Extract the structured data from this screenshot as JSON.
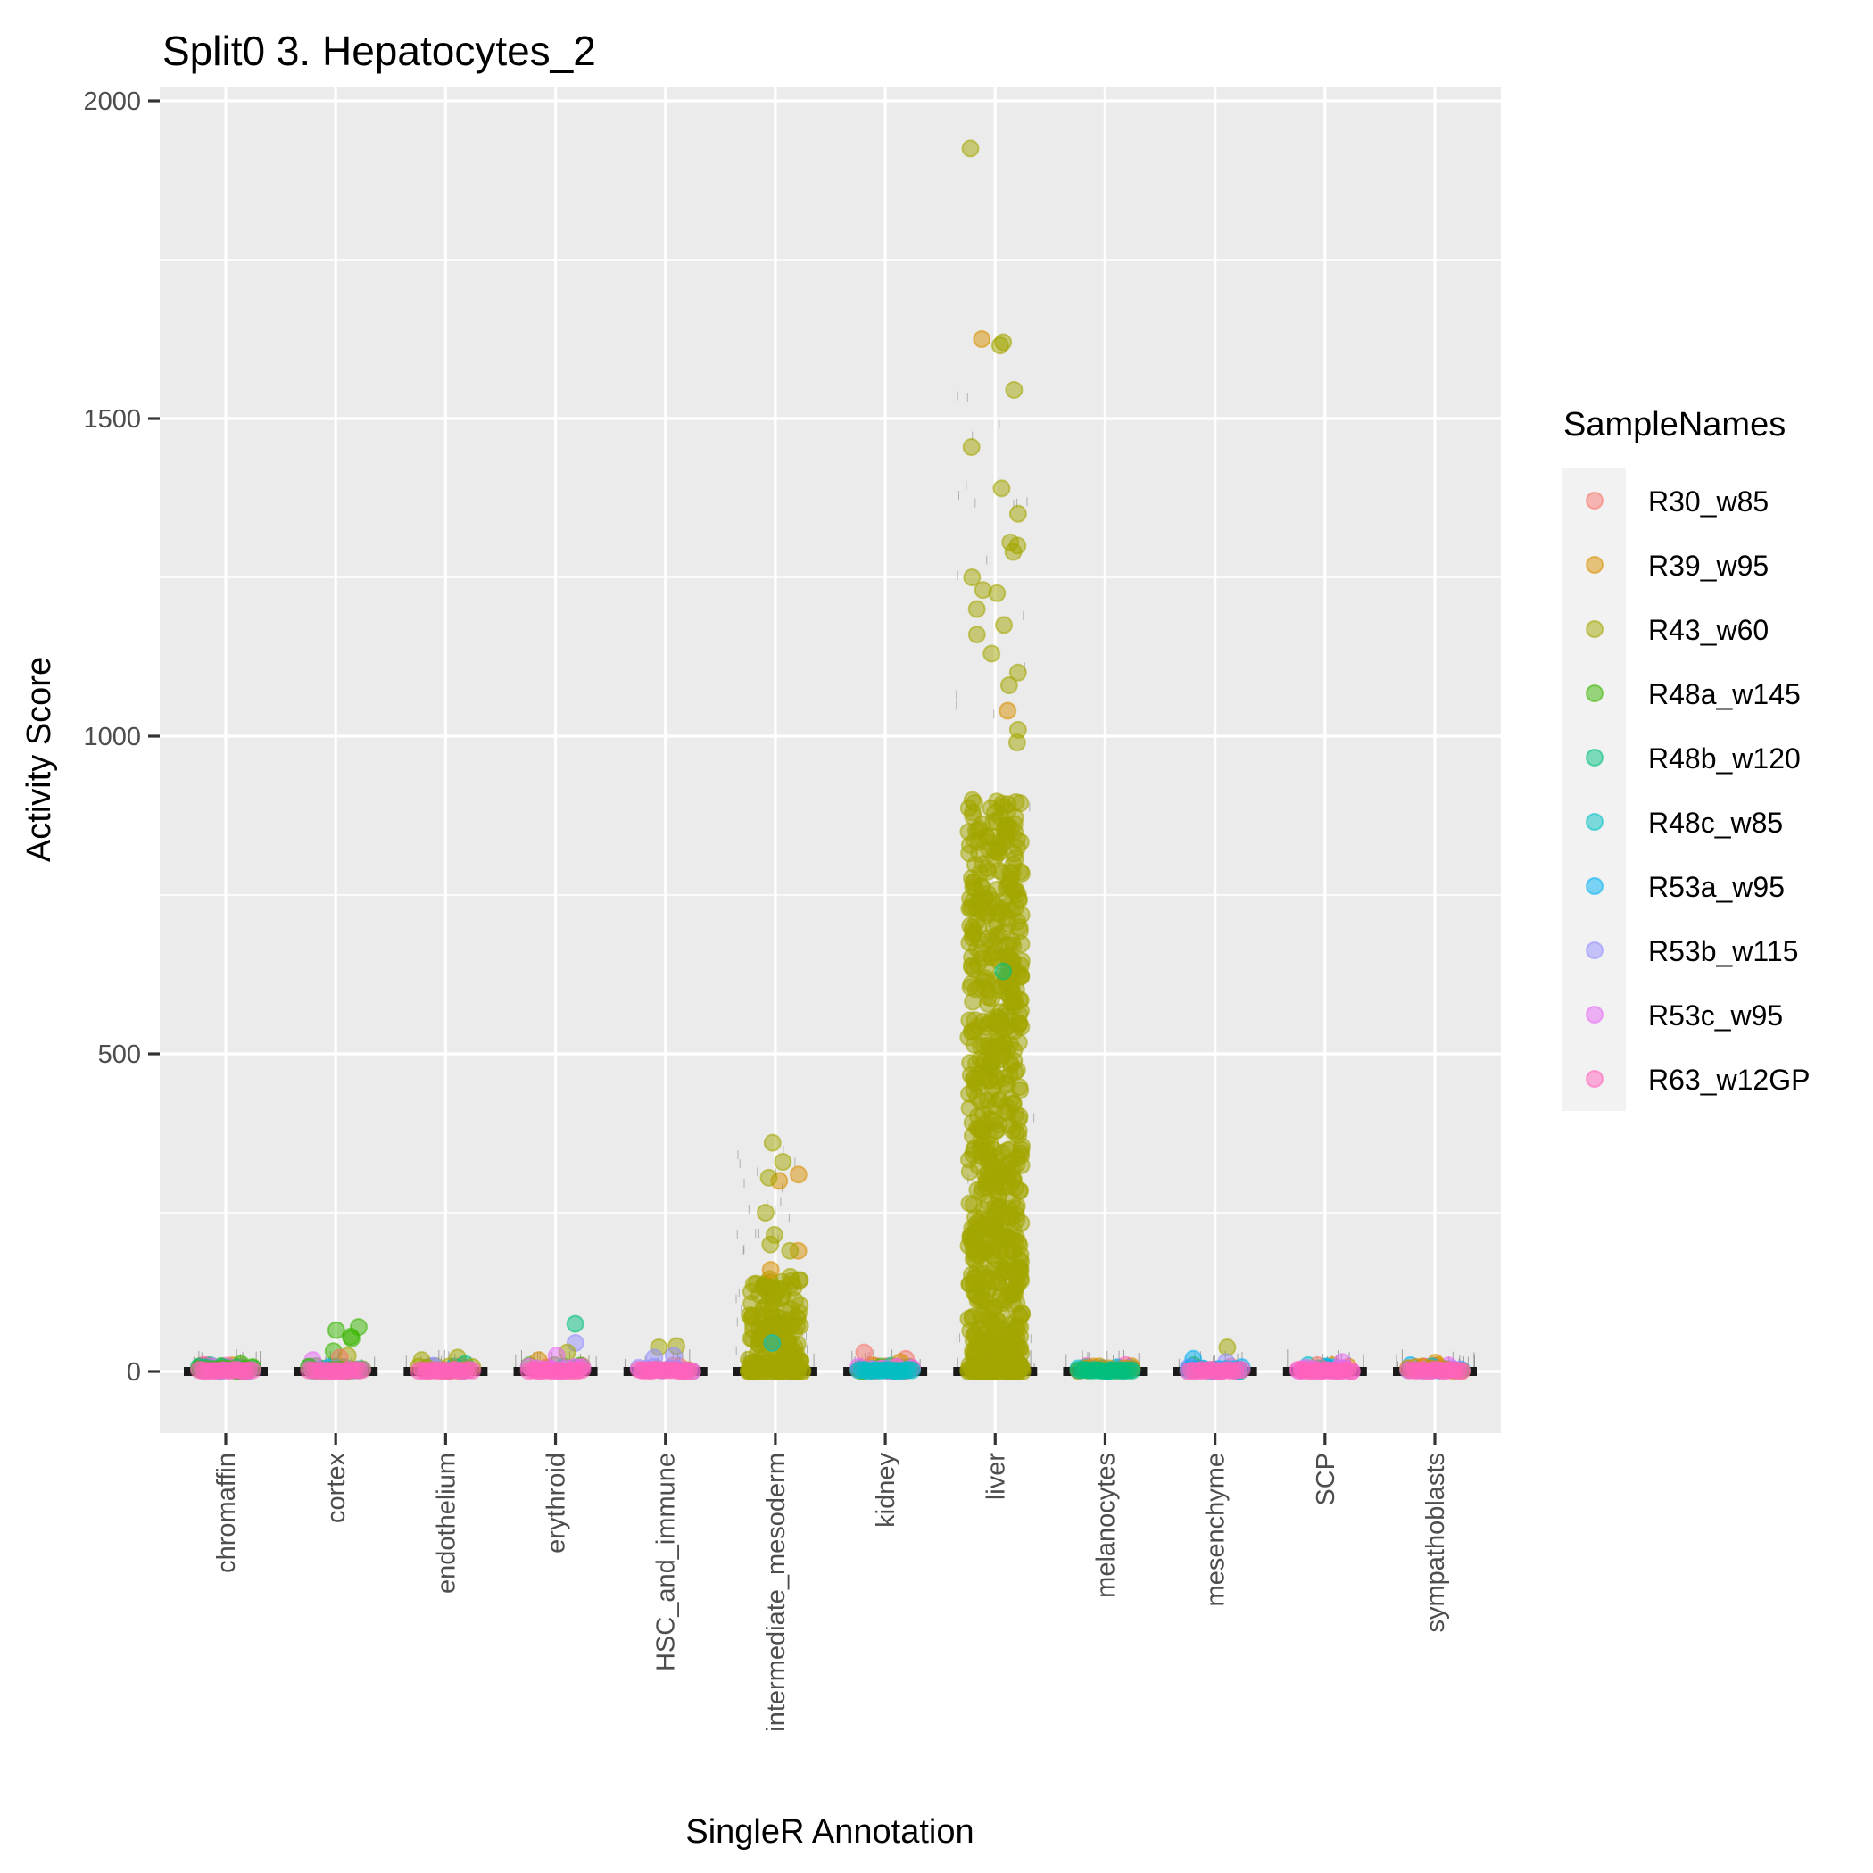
{
  "chart_data": {
    "type": "scatter",
    "subtype": "jittered strip plot over violin/box baseline",
    "title": "Split0 3. Hepatocytes_2",
    "xlabel": "SingleR Annotation",
    "ylabel": "Activity Score",
    "ylim": [
      -100,
      2030
    ],
    "yticks": [
      0,
      500,
      1000,
      1500,
      2000
    ],
    "ytick_labels": [
      "0",
      "500",
      "1000",
      "1500",
      "2000"
    ],
    "grid": true,
    "categories": [
      "chromaffin",
      "cortex",
      "endothelium",
      "erythroid",
      "HSC_and_immune",
      "intermediate_mesoderm",
      "kidney",
      "liver",
      "melanocytes",
      "mesenchyme",
      "SCP",
      "sympathoblasts"
    ],
    "legend": {
      "title": "SampleNames",
      "position": "right",
      "entries": [
        {
          "name": "R30_w85",
          "color": "#F8766D"
        },
        {
          "name": "R39_w95",
          "color": "#D89000"
        },
        {
          "name": "R43_w60",
          "color": "#A3A500"
        },
        {
          "name": "R48a_w145",
          "color": "#39B600"
        },
        {
          "name": "R48b_w120",
          "color": "#00BF7D"
        },
        {
          "name": "R48c_w85",
          "color": "#00BFC4"
        },
        {
          "name": "R53a_w95",
          "color": "#00B0F6"
        },
        {
          "name": "R53b_w115",
          "color": "#9590FF"
        },
        {
          "name": "R53c_w95",
          "color": "#E76BF3"
        },
        {
          "name": "R63_w12GP",
          "color": "#FF62BC"
        }
      ]
    },
    "series_summary": [
      {
        "category": "chromaffin",
        "baseline": 0,
        "max": 12,
        "dominant_samples": [
          "R63_w12GP",
          "R48a_w145",
          "R48b_w120"
        ],
        "points": [
          {
            "sample": "R48a_w145",
            "y": 12
          },
          {
            "sample": "R48b_w120",
            "y": 10
          },
          {
            "sample": "R63_w12GP",
            "y": 10
          },
          {
            "sample": "R53c_w95",
            "y": 8
          }
        ]
      },
      {
        "category": "cortex",
        "baseline": 0,
        "max": 70,
        "dominant_samples": [
          "R63_w12GP",
          "R48a_w145"
        ],
        "points": [
          {
            "sample": "R48a_w145",
            "y": 70
          },
          {
            "sample": "R48a_w145",
            "y": 65
          },
          {
            "sample": "R48a_w145",
            "y": 55
          },
          {
            "sample": "R48a_w145",
            "y": 52
          },
          {
            "sample": "R48a_w145",
            "y": 32
          },
          {
            "sample": "R43_w60",
            "y": 25
          },
          {
            "sample": "R30_w85",
            "y": 22
          },
          {
            "sample": "R53c_w95",
            "y": 18
          }
        ]
      },
      {
        "category": "endothelium",
        "baseline": 0,
        "max": 22,
        "dominant_samples": [
          "R63_w12GP",
          "R43_w60"
        ],
        "points": [
          {
            "sample": "R43_w60",
            "y": 22
          },
          {
            "sample": "R43_w60",
            "y": 18
          },
          {
            "sample": "R48b_w120",
            "y": 12
          }
        ]
      },
      {
        "category": "erythroid",
        "baseline": 0,
        "max": 75,
        "dominant_samples": [
          "R63_w12GP",
          "R53c_w95"
        ],
        "points": [
          {
            "sample": "R48b_w120",
            "y": 75
          },
          {
            "sample": "R53b_w115",
            "y": 45
          },
          {
            "sample": "R43_w60",
            "y": 30
          },
          {
            "sample": "R53c_w95",
            "y": 25
          },
          {
            "sample": "R39_w95",
            "y": 18
          }
        ]
      },
      {
        "category": "HSC_and_immune",
        "baseline": 0,
        "max": 40,
        "dominant_samples": [
          "R63_w12GP",
          "R53b_w115"
        ],
        "points": [
          {
            "sample": "R43_w60",
            "y": 40
          },
          {
            "sample": "R43_w60",
            "y": 38
          },
          {
            "sample": "R53b_w115",
            "y": 25
          },
          {
            "sample": "R53b_w115",
            "y": 22
          }
        ]
      },
      {
        "category": "intermediate_mesoderm",
        "baseline": 0,
        "max": 360,
        "dominant_samples": [
          "R43_w60"
        ],
        "points": [
          {
            "sample": "R43_w60",
            "y": 360
          },
          {
            "sample": "R43_w60",
            "y": 330
          },
          {
            "sample": "R39_w95",
            "y": 310
          },
          {
            "sample": "R39_w95",
            "y": 300
          },
          {
            "sample": "R43_w60",
            "y": 305
          },
          {
            "sample": "R43_w60",
            "y": 250
          },
          {
            "sample": "R43_w60",
            "y": 215
          },
          {
            "sample": "R43_w60",
            "y": 200
          },
          {
            "sample": "R39_w95",
            "y": 190
          },
          {
            "sample": "R43_w60",
            "y": 190
          },
          {
            "sample": "R39_w95",
            "y": 160
          },
          {
            "sample": "R48c_w85",
            "y": 45
          }
        ],
        "bulk": {
          "sample": "R43_w60",
          "count": 160,
          "range": [
            0,
            150
          ]
        }
      },
      {
        "category": "kidney",
        "baseline": 0,
        "max": 30,
        "dominant_samples": [
          "R48c_w85",
          "R53c_w95",
          "R30_w85"
        ],
        "points": [
          {
            "sample": "R30_w85",
            "y": 30
          },
          {
            "sample": "R30_w85",
            "y": 20
          },
          {
            "sample": "R39_w95",
            "y": 15
          }
        ]
      },
      {
        "category": "liver",
        "baseline": 0,
        "max": 1925,
        "dominant_samples": [
          "R43_w60"
        ],
        "points": [
          {
            "sample": "R43_w60",
            "y": 1925
          },
          {
            "sample": "R39_w95",
            "y": 1625
          },
          {
            "sample": "R43_w60",
            "y": 1620
          },
          {
            "sample": "R43_w60",
            "y": 1615
          },
          {
            "sample": "R43_w60",
            "y": 1545
          },
          {
            "sample": "R43_w60",
            "y": 1455
          },
          {
            "sample": "R43_w60",
            "y": 1390
          },
          {
            "sample": "R43_w60",
            "y": 1350
          },
          {
            "sample": "R43_w60",
            "y": 1305
          },
          {
            "sample": "R43_w60",
            "y": 1300
          },
          {
            "sample": "R43_w60",
            "y": 1290
          },
          {
            "sample": "R43_w60",
            "y": 1250
          },
          {
            "sample": "R43_w60",
            "y": 1230
          },
          {
            "sample": "R43_w60",
            "y": 1225
          },
          {
            "sample": "R43_w60",
            "y": 1200
          },
          {
            "sample": "R43_w60",
            "y": 1175
          },
          {
            "sample": "R43_w60",
            "y": 1160
          },
          {
            "sample": "R43_w60",
            "y": 1130
          },
          {
            "sample": "R43_w60",
            "y": 1100
          },
          {
            "sample": "R43_w60",
            "y": 1080
          },
          {
            "sample": "R39_w95",
            "y": 1040
          },
          {
            "sample": "R43_w60",
            "y": 1010
          },
          {
            "sample": "R43_w60",
            "y": 990
          },
          {
            "sample": "R48b_w120",
            "y": 630
          }
        ],
        "bulk": {
          "sample": "R43_w60",
          "count": 700,
          "range": [
            0,
            900
          ]
        }
      },
      {
        "category": "melanocytes",
        "baseline": 0,
        "max": 8,
        "dominant_samples": [
          "R48b_w120",
          "R39_w95",
          "R48c_w85"
        ],
        "points": [
          {
            "sample": "R39_w95",
            "y": 8
          },
          {
            "sample": "R53b_w115",
            "y": 3
          }
        ]
      },
      {
        "category": "mesenchyme",
        "baseline": 0,
        "max": 38,
        "dominant_samples": [
          "R63_w12GP",
          "R53a_w95"
        ],
        "points": [
          {
            "sample": "R43_w60",
            "y": 38
          },
          {
            "sample": "R53a_w95",
            "y": 20
          },
          {
            "sample": "R53b_w115",
            "y": 15
          }
        ]
      },
      {
        "category": "SCP",
        "baseline": 0,
        "max": 15,
        "dominant_samples": [
          "R63_w12GP",
          "R53c_w95"
        ],
        "points": [
          {
            "sample": "R53c_w95",
            "y": 15
          },
          {
            "sample": "R30_w85",
            "y": 10
          }
        ]
      },
      {
        "category": "sympathoblasts",
        "baseline": 0,
        "max": 14,
        "dominant_samples": [
          "R63_w12GP",
          "R39_w95",
          "R53a_w95"
        ],
        "points": [
          {
            "sample": "R39_w95",
            "y": 14
          },
          {
            "sample": "R53a_w95",
            "y": 10
          },
          {
            "sample": "R48c_w85",
            "y": 8
          }
        ]
      }
    ]
  }
}
